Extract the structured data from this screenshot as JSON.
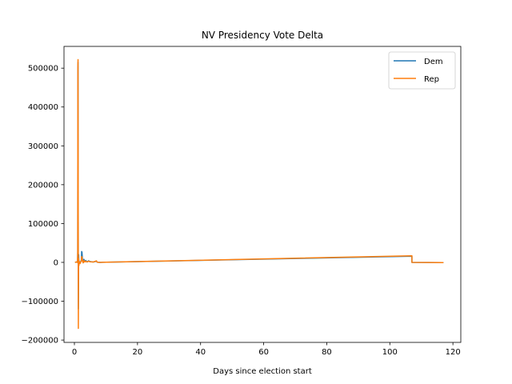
{
  "chart_data": {
    "type": "line",
    "title": "NV Presidency Vote Delta",
    "xlabel": "Days since election start",
    "ylabel": "",
    "xlim": [
      -3.3,
      122.5
    ],
    "ylim": [
      -206000,
      556000
    ],
    "xticks": [
      0,
      20,
      40,
      60,
      80,
      100,
      120
    ],
    "yticks": [
      -200000,
      -100000,
      0,
      100000,
      200000,
      300000,
      400000,
      500000
    ],
    "grid": false,
    "legend_position": "top-right",
    "series": [
      {
        "name": "Dem",
        "color": "#1f77b4",
        "x": [
          0.2,
          0.6,
          0.9,
          1.0,
          1.05,
          1.1,
          1.15,
          1.2,
          1.25,
          1.3,
          1.35,
          1.4,
          1.45,
          1.5,
          1.6,
          1.8,
          2.0,
          2.2,
          2.3,
          2.4,
          2.6,
          2.8,
          3.0,
          3.3,
          3.6,
          4.0,
          4.5,
          5.0,
          6.0,
          7.0,
          7.2,
          8.0,
          107.0,
          107.0,
          117.0
        ],
        "y": [
          0,
          1000,
          0,
          3000,
          25000,
          495000,
          515000,
          150000,
          -120000,
          -30000,
          20000,
          5000,
          -5000,
          3000,
          0,
          -2000,
          2000,
          6000,
          28000,
          26000,
          3000,
          -1000,
          8000,
          2000,
          5000,
          1000,
          4000,
          2000,
          1000,
          3000,
          500,
          0,
          16000,
          0,
          -500
        ]
      },
      {
        "name": "Rep",
        "color": "#ff7f0e",
        "x": [
          0.2,
          0.6,
          0.9,
          1.0,
          1.05,
          1.1,
          1.15,
          1.2,
          1.25,
          1.3,
          1.35,
          1.4,
          1.45,
          1.5,
          1.6,
          1.8,
          2.0,
          2.2,
          2.3,
          2.4,
          2.6,
          2.8,
          3.0,
          3.3,
          3.6,
          4.0,
          4.5,
          5.0,
          6.0,
          7.0,
          7.2,
          8.0,
          107.0,
          107.0,
          117.0
        ],
        "y": [
          0,
          1000,
          0,
          5000,
          30000,
          510000,
          522000,
          200000,
          -170000,
          -60000,
          10000,
          2000,
          -8000,
          2000,
          0,
          -3000,
          1000,
          4000,
          15000,
          14000,
          2000,
          -1000,
          5000,
          1000,
          3000,
          1000,
          3000,
          1500,
          1000,
          4000,
          500,
          0,
          17000,
          0,
          -500
        ]
      }
    ]
  }
}
